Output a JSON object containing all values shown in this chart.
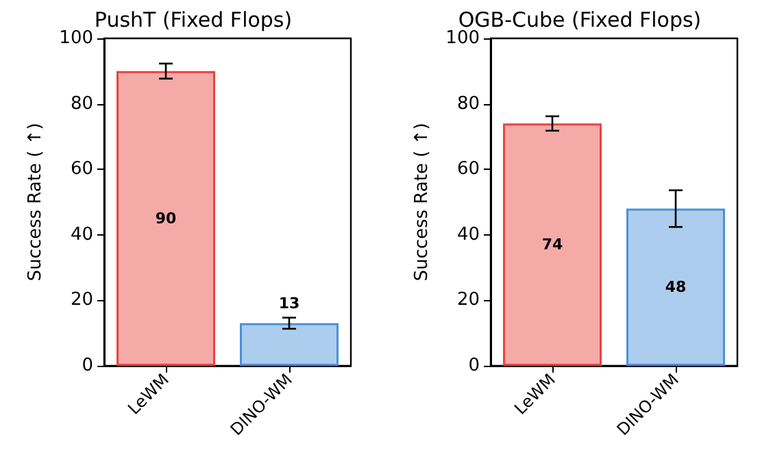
{
  "chart_data": [
    {
      "type": "bar",
      "title": "PushT (Fixed Flops)",
      "ylabel": "Success Rate ( ↑)",
      "categories": [
        "LeWM",
        "DINO-WM"
      ],
      "values": [
        90,
        13
      ],
      "data_labels": true,
      "errors": [
        2.3,
        1.7
      ],
      "colors": [
        "#e8433f",
        "#4a90d9"
      ],
      "ylim": [
        0,
        100
      ],
      "yticks": [
        0,
        20,
        40,
        60,
        80,
        100
      ],
      "grid": false
    },
    {
      "type": "bar",
      "title": "OGB-Cube (Fixed Flops)",
      "ylabel": "Success Rate ( ↑)",
      "categories": [
        "LeWM",
        "DINO-WM"
      ],
      "values": [
        74,
        48
      ],
      "data_labels": true,
      "errors": [
        2.2,
        5.6
      ],
      "colors": [
        "#e8433f",
        "#4a90d9"
      ],
      "ylim": [
        0,
        100
      ],
      "yticks": [
        0,
        20,
        40,
        60,
        80,
        100
      ],
      "grid": false
    }
  ]
}
